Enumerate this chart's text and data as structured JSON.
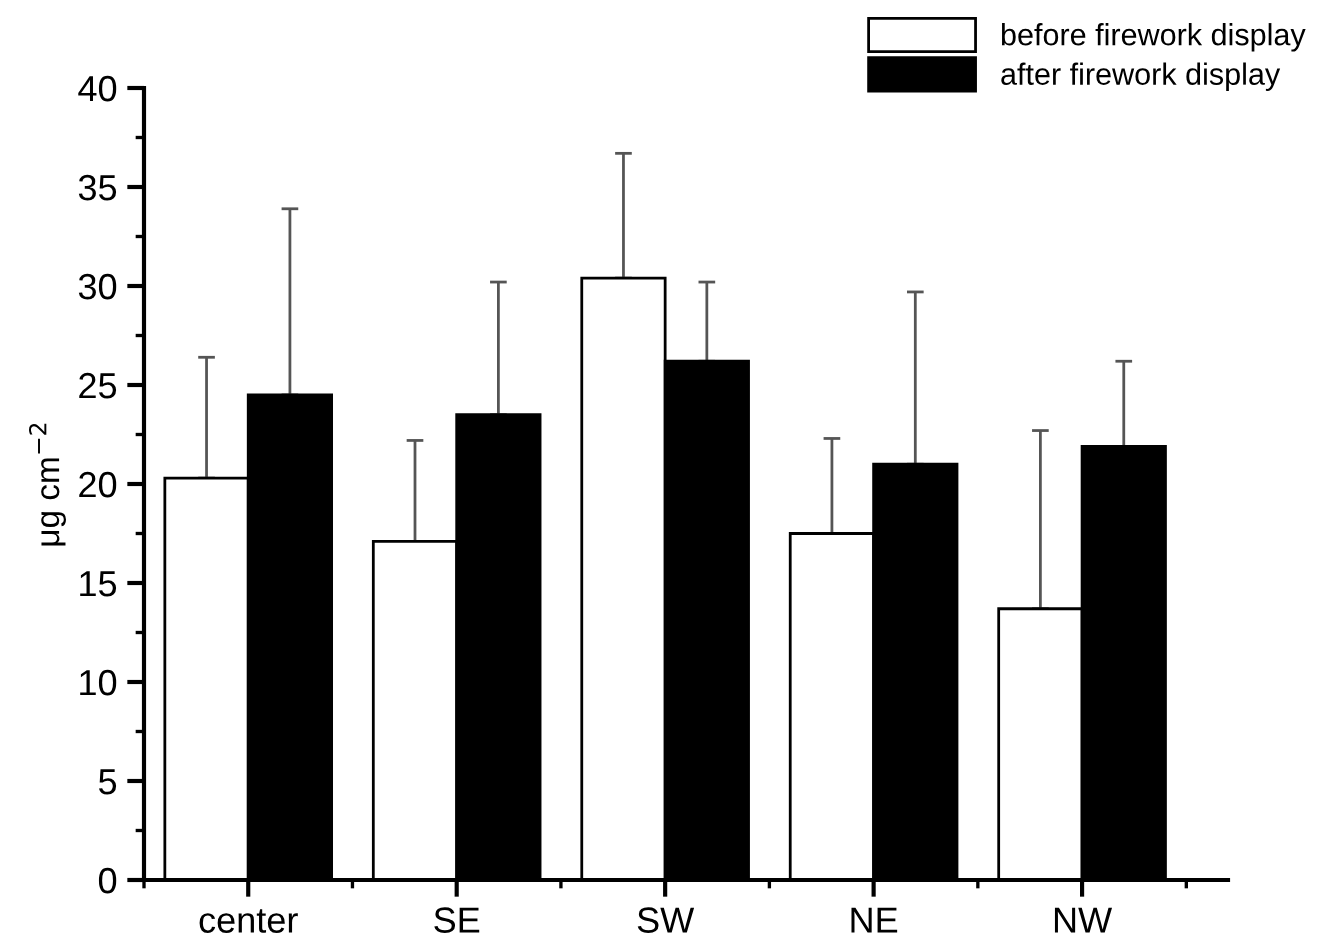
{
  "chart_data": {
    "type": "bar",
    "ylabel": "μg cm$^{−2}$",
    "categories": [
      "center",
      "SE",
      "SW",
      "NE",
      "NW"
    ],
    "series": [
      {
        "name": "before firework display",
        "color": "#ffffff",
        "values": [
          20.3,
          17.1,
          30.4,
          17.5,
          13.7
        ],
        "errors": [
          [
            20.3,
            26.4
          ],
          [
            17.1,
            22.2
          ],
          [
            30.4,
            36.7
          ],
          [
            17.5,
            22.3
          ],
          [
            13.7,
            22.7
          ]
        ]
      },
      {
        "name": "after firework display",
        "color": "#000000",
        "values": [
          24.5,
          23.5,
          26.2,
          21.0,
          21.9
        ],
        "errors": [
          [
            24.5,
            33.9
          ],
          [
            23.5,
            30.2
          ],
          [
            26.2,
            30.2
          ],
          [
            21.0,
            29.7
          ],
          [
            21.9,
            26.2
          ]
        ]
      }
    ],
    "ylim": [
      0,
      40
    ],
    "yticks": [
      0,
      5,
      10,
      15,
      20,
      25,
      30,
      35,
      40
    ],
    "grid": false,
    "legend": "top right"
  }
}
